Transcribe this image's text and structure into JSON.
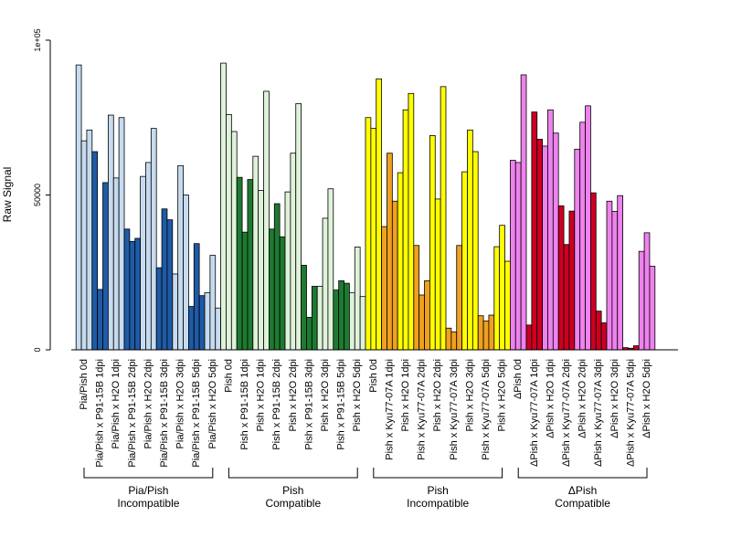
{
  "chart_data": {
    "type": "bar",
    "ylabel": "Raw Signal",
    "ylim": [
      0,
      100000
    ],
    "y_ticks": [
      {
        "value": 0,
        "label": "0"
      },
      {
        "value": 50000,
        "label": "50000"
      },
      {
        "value": 100000,
        "label": "1e+05"
      }
    ],
    "bars_per_category": 3,
    "colors": {
      "light_blue": "#c6dbef",
      "dark_blue": "#1f5aa6",
      "light_green": "#dff2da",
      "dark_green": "#1e7a30",
      "yellow": "#ffff00",
      "orange": "#f0a020",
      "violet": "#ee82ee",
      "red": "#cc0022"
    },
    "categories": [
      {
        "label": "Pia/Pish 0d",
        "color": "light_blue",
        "values": [
          92000,
          67500,
          71000
        ]
      },
      {
        "label": "Pia/Pish x P91-15B 1dpi",
        "color": "dark_blue",
        "values": [
          64000,
          19500,
          54000
        ]
      },
      {
        "label": "Pia/Pish x H2O 1dpi",
        "color": "light_blue",
        "values": [
          75800,
          55500,
          75000
        ]
      },
      {
        "label": "Pia/Pish x P91-15B 2dpi",
        "color": "dark_blue",
        "values": [
          39000,
          35000,
          36000
        ]
      },
      {
        "label": "Pia/Pish x H2O 2dpi",
        "color": "light_blue",
        "values": [
          56000,
          60500,
          71500
        ]
      },
      {
        "label": "Pia/Pish x P91-15B 3dpi",
        "color": "dark_blue",
        "values": [
          26500,
          45500,
          42000
        ]
      },
      {
        "label": "Pia/Pish x H2O 3dpi",
        "color": "light_blue",
        "values": [
          24500,
          59500,
          50000
        ]
      },
      {
        "label": "Pia/Pish x P91-15B 5dpi",
        "color": "dark_blue",
        "values": [
          14000,
          34300,
          17500
        ]
      },
      {
        "label": "Pia/Pish x H2O 5dpi",
        "color": "light_blue",
        "values": [
          18500,
          30500,
          13500
        ]
      },
      {
        "label": "Pish 0d",
        "color": "light_green",
        "values": [
          92600,
          76000,
          70500
        ]
      },
      {
        "label": "Pish x P91-15B 1dpi",
        "color": "dark_green",
        "values": [
          55700,
          38000,
          55000
        ]
      },
      {
        "label": "Pish x H2O 1dpi",
        "color": "light_green",
        "values": [
          62500,
          51500,
          83500
        ]
      },
      {
        "label": "Pish x P91-15B 2dpi",
        "color": "dark_green",
        "values": [
          39000,
          47200,
          36500
        ]
      },
      {
        "label": "Pish x H2O 2dpi",
        "color": "light_green",
        "values": [
          51000,
          63500,
          79500
        ]
      },
      {
        "label": "Pish x P91-15B 3dpi",
        "color": "dark_green",
        "values": [
          27300,
          10500,
          20500
        ]
      },
      {
        "label": "Pish x H2O 3dpi",
        "color": "light_green",
        "values": [
          20500,
          42500,
          52000
        ]
      },
      {
        "label": "Pish x P91-15B 5dpi",
        "color": "dark_green",
        "values": [
          19300,
          22300,
          21500
        ]
      },
      {
        "label": "Pish x H2O 5dpi",
        "color": "light_green",
        "values": [
          18500,
          33200,
          17200
        ]
      },
      {
        "label": "Pish 0d",
        "color": "yellow",
        "values": [
          75000,
          71500,
          87500
        ]
      },
      {
        "label": "Pish x Kyu77-07A 1dpi",
        "color": "orange",
        "values": [
          39800,
          63500,
          48000
        ]
      },
      {
        "label": "Pish x H2O 1dpi",
        "color": "yellow",
        "values": [
          57200,
          77500,
          82800
        ]
      },
      {
        "label": "Pish x Kyu77-07A 2dpi",
        "color": "orange",
        "values": [
          33700,
          17700,
          22300
        ]
      },
      {
        "label": "Pish x H2O 2dpi",
        "color": "yellow",
        "values": [
          69200,
          48700,
          85000
        ]
      },
      {
        "label": "Pish x Kyu77-07A 3dpi",
        "color": "orange",
        "values": [
          7000,
          5800,
          33700
        ]
      },
      {
        "label": "Pish x H2O 3dpi",
        "color": "yellow",
        "values": [
          57500,
          71000,
          64000
        ]
      },
      {
        "label": "Pish x Kyu77-07A 5dpi",
        "color": "orange",
        "values": [
          11000,
          9300,
          11200
        ]
      },
      {
        "label": "Pish x H2O 5dpi",
        "color": "yellow",
        "values": [
          33300,
          40200,
          28600
        ]
      },
      {
        "label": "ΔPish 0d",
        "color": "violet",
        "values": [
          61200,
          60500,
          88800
        ]
      },
      {
        "label": "ΔPish x Kyu77-07A 1dpi",
        "color": "red",
        "values": [
          8000,
          76800,
          68000
        ]
      },
      {
        "label": "ΔPish x H2O 1dpi",
        "color": "violet",
        "values": [
          65800,
          77500,
          70000
        ]
      },
      {
        "label": "ΔPish x Kyu77-07A 2dpi",
        "color": "red",
        "values": [
          46500,
          34000,
          44800
        ]
      },
      {
        "label": "ΔPish x H2O 2dpi",
        "color": "violet",
        "values": [
          64800,
          73500,
          78800
        ]
      },
      {
        "label": "ΔPish x Kyu77-07A 3dpi",
        "color": "red",
        "values": [
          50700,
          12500,
          8700
        ]
      },
      {
        "label": "ΔPish x H2O 3dpi",
        "color": "violet",
        "values": [
          48000,
          44700,
          49800
        ]
      },
      {
        "label": "ΔPish x Kyu77-07A 5dpi",
        "color": "red",
        "values": [
          700,
          500,
          1300
        ]
      },
      {
        "label": "ΔPish x H2O 5dpi",
        "color": "violet",
        "values": [
          31800,
          37800,
          27000
        ]
      }
    ],
    "groups": [
      {
        "line1": "Pia/Pish",
        "line2": "Incompatible",
        "start": 0,
        "end": 8
      },
      {
        "line1": "Pish",
        "line2": "Compatible",
        "start": 9,
        "end": 17
      },
      {
        "line1": "Pish",
        "line2": "Incompatible",
        "start": 18,
        "end": 26
      },
      {
        "line1": "ΔPish",
        "line2": "Compatible",
        "start": 27,
        "end": 35
      }
    ],
    "grid": false,
    "legend": "none"
  }
}
